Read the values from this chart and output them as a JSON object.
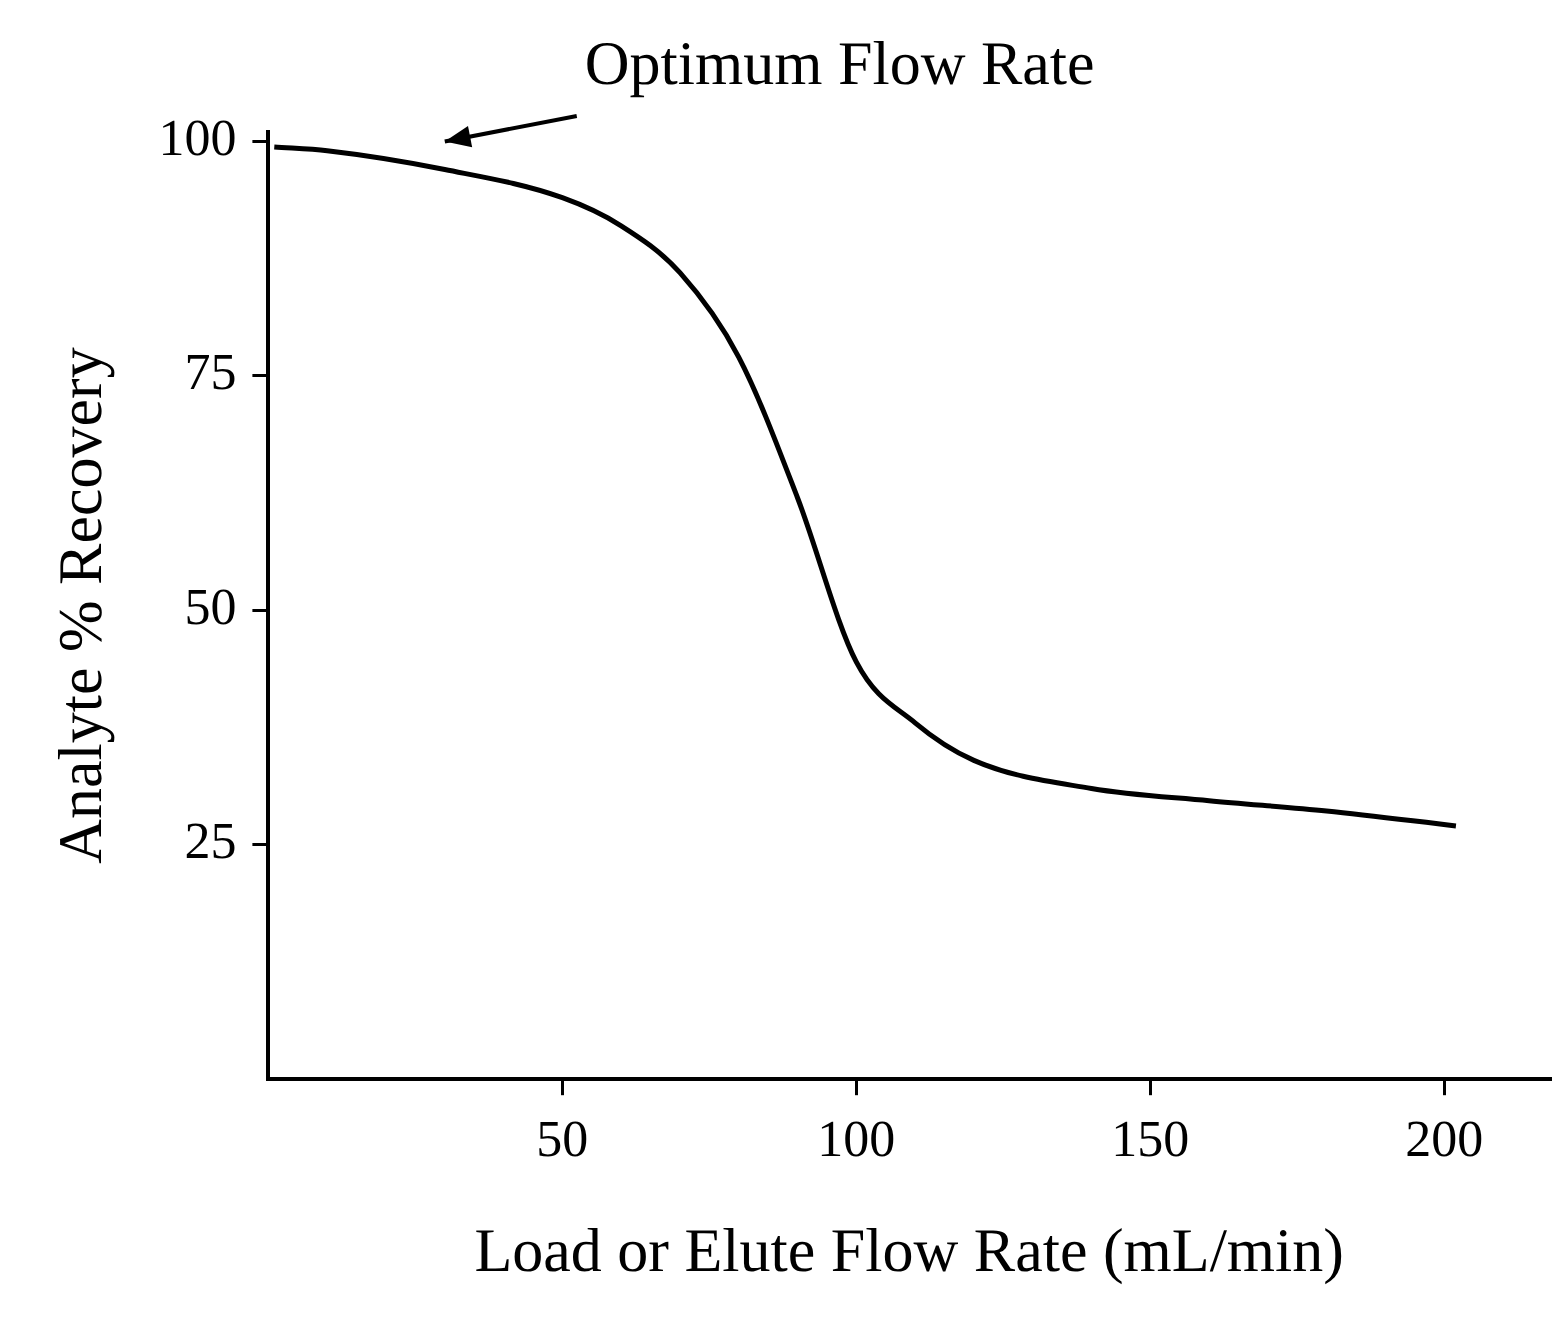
{
  "chart_data": {
    "type": "line",
    "xlabel": "Load or Elute Flow Rate (mL/min)",
    "ylabel": "Analyte % Recovery",
    "x": [
      1,
      10,
      30,
      50,
      60,
      70,
      80,
      90,
      100,
      110,
      120,
      140,
      160,
      180,
      202
    ],
    "series": [
      {
        "color": "#000000",
        "values": [
          99.4,
          99,
          97,
          94,
          91,
          86,
          77,
          62,
          44.5,
          38,
          34,
          31,
          29.7,
          28.6,
          27
        ]
      }
    ],
    "xlim": [
      0,
      218
    ],
    "ylim": [
      0,
      101
    ],
    "xticks": [
      50,
      100,
      150,
      200
    ],
    "yticks": [
      25,
      50,
      75,
      100
    ],
    "annotations": [
      {
        "text": "Optimum Flow Rate",
        "x": 30,
        "y": 97
      }
    ],
    "grid": false,
    "legend": false,
    "marker": "none",
    "line_style": "solid"
  }
}
